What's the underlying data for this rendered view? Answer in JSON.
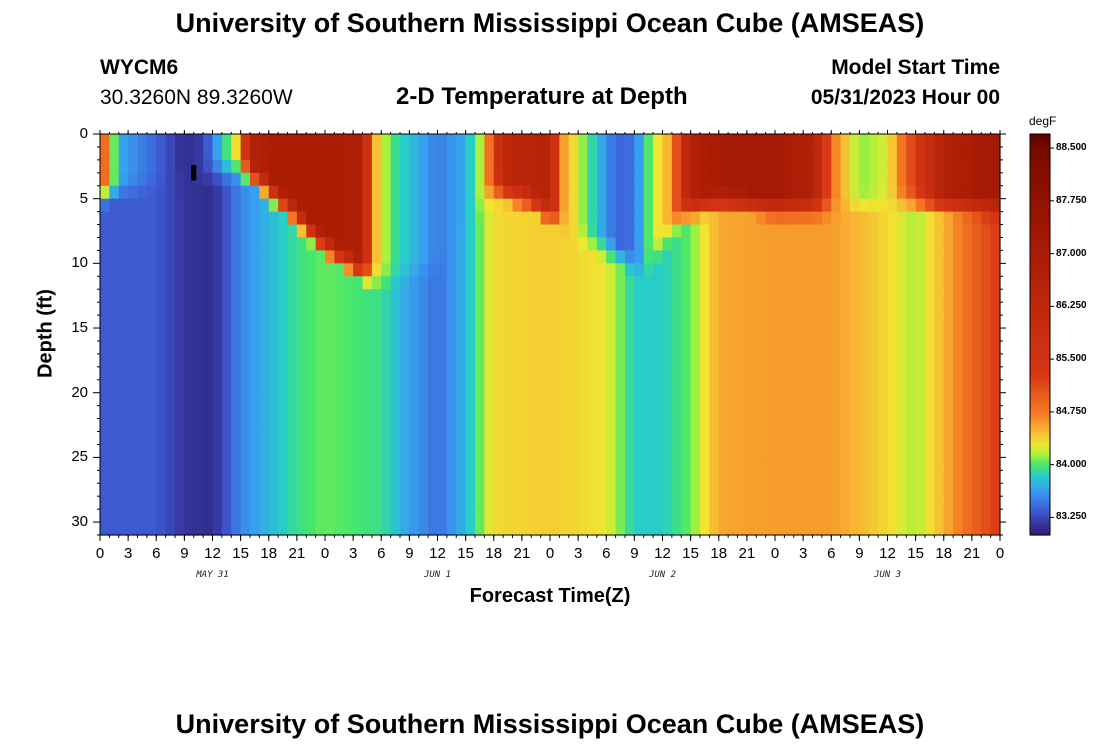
{
  "title": "University of Southern Mississippi Ocean Cube (AMSEAS)",
  "footer_title": "University of Southern Mississippi Ocean Cube (AMSEAS)",
  "station": "WYCM6",
  "coordinates": "30.3260N  89.3260W",
  "subtitle": "2-D Temperature at Depth",
  "model_start_label": "Model Start Time",
  "model_start_value": "05/31/2023 Hour 00",
  "chart_data": {
    "type": "heatmap",
    "title": "2-D Temperature at Depth",
    "xlabel": "Forecast Time(Z)",
    "ylabel": "Depth (ft)",
    "x_hours": [
      0,
      3,
      6,
      9,
      12,
      15,
      18,
      21,
      24,
      27,
      30,
      33,
      36,
      39,
      42,
      45,
      48,
      51,
      54,
      57,
      60,
      63,
      66,
      69,
      72,
      75,
      78,
      81,
      84,
      87,
      90,
      93,
      96
    ],
    "x_range": [
      0,
      96
    ],
    "xtick_labels": [
      "0",
      "3",
      "6",
      "9",
      "12",
      "15",
      "18",
      "21",
      "0",
      "3",
      "6",
      "9",
      "12",
      "15",
      "18",
      "21",
      "0",
      "3",
      "6",
      "9",
      "12",
      "15",
      "18",
      "21",
      "0",
      "3",
      "6",
      "9",
      "12",
      "15",
      "18",
      "21",
      "0"
    ],
    "day_labels": [
      {
        "label": "MAY 31",
        "hour": 12
      },
      {
        "label": "JUN 1",
        "hour": 36
      },
      {
        "label": "JUN 2",
        "hour": 60
      },
      {
        "label": "JUN 3",
        "hour": 84
      }
    ],
    "depth_range": [
      0,
      31
    ],
    "ytick_values": [
      0,
      5,
      10,
      15,
      20,
      25,
      30
    ],
    "ytick_labels": [
      "0",
      "5",
      "10",
      "15",
      "20",
      "25",
      "30"
    ],
    "colorbar": {
      "unit": "degF",
      "min": 83.0,
      "max": 88.7,
      "tick_values": [
        88.5,
        87.75,
        87.0,
        86.25,
        85.5,
        84.75,
        84.0,
        83.25
      ],
      "tick_labels": [
        "88.500",
        "87.750",
        "87.000",
        "86.250",
        "85.500",
        "84.750",
        "84.000",
        "83.250"
      ]
    },
    "deep_profile_degF": [
      {
        "hour": 0,
        "value": 83.35
      },
      {
        "hour": 6,
        "value": 83.35
      },
      {
        "hour": 9,
        "value": 83.15
      },
      {
        "hour": 12,
        "value": 83.1
      },
      {
        "hour": 15,
        "value": 83.55
      },
      {
        "hour": 18,
        "value": 83.75
      },
      {
        "hour": 21,
        "value": 83.95
      },
      {
        "hour": 24,
        "value": 84.05
      },
      {
        "hour": 30,
        "value": 83.95
      },
      {
        "hour": 33,
        "value": 83.65
      },
      {
        "hour": 36,
        "value": 83.45
      },
      {
        "hour": 39,
        "value": 83.75
      },
      {
        "hour": 42,
        "value": 84.35
      },
      {
        "hour": 48,
        "value": 84.4
      },
      {
        "hour": 54,
        "value": 84.3
      },
      {
        "hour": 57,
        "value": 83.85
      },
      {
        "hour": 60,
        "value": 83.85
      },
      {
        "hour": 63,
        "value": 84.05
      },
      {
        "hour": 66,
        "value": 84.55
      },
      {
        "hour": 72,
        "value": 84.6
      },
      {
        "hour": 78,
        "value": 84.6
      },
      {
        "hour": 84,
        "value": 84.35
      },
      {
        "hour": 87,
        "value": 84.15
      },
      {
        "hour": 90,
        "value": 84.5
      },
      {
        "hour": 93,
        "value": 84.9
      },
      {
        "hour": 96,
        "value": 85.3
      }
    ],
    "surface_profile_degF": [
      {
        "hour": 0,
        "value": 85.3
      },
      {
        "hour": 1,
        "value": 84.4
      },
      {
        "hour": 2,
        "value": 83.7
      },
      {
        "hour": 6,
        "value": 83.4
      },
      {
        "hour": 9,
        "value": 83.1
      },
      {
        "hour": 11,
        "value": 83.2
      },
      {
        "hour": 13,
        "value": 83.8
      },
      {
        "hour": 15,
        "value": 84.5
      },
      {
        "hour": 16,
        "value": 86.6
      },
      {
        "hour": 18,
        "value": 86.9
      },
      {
        "hour": 24,
        "value": 87.0
      },
      {
        "hour": 28,
        "value": 86.8
      },
      {
        "hour": 29,
        "value": 84.6
      },
      {
        "hour": 31,
        "value": 84.0
      },
      {
        "hour": 36,
        "value": 83.5
      },
      {
        "hour": 39,
        "value": 83.7
      },
      {
        "hour": 41,
        "value": 84.3
      },
      {
        "hour": 43,
        "value": 86.3
      },
      {
        "hour": 48,
        "value": 86.6
      },
      {
        "hour": 49,
        "value": 84.7
      },
      {
        "hour": 52,
        "value": 84.0
      },
      {
        "hour": 55,
        "value": 83.4
      },
      {
        "hour": 57,
        "value": 83.45
      },
      {
        "hour": 59,
        "value": 84.2
      },
      {
        "hour": 61,
        "value": 84.6
      },
      {
        "hour": 63,
        "value": 86.6
      },
      {
        "hour": 66,
        "value": 87.1
      },
      {
        "hour": 72,
        "value": 87.2
      },
      {
        "hour": 76,
        "value": 86.7
      },
      {
        "hour": 78,
        "value": 84.8
      },
      {
        "hour": 81,
        "value": 84.1
      },
      {
        "hour": 84,
        "value": 84.25
      },
      {
        "hour": 87,
        "value": 85.3
      },
      {
        "hour": 90,
        "value": 86.7
      },
      {
        "hour": 96,
        "value": 87.3
      }
    ],
    "mixed_layer_depth_ft": [
      {
        "hour": 0,
        "value": 4.5
      },
      {
        "hour": 15,
        "value": 2.5
      },
      {
        "hour": 17,
        "value": 3.5
      },
      {
        "hour": 20,
        "value": 5.5
      },
      {
        "hour": 24,
        "value": 8.5
      },
      {
        "hour": 28,
        "value": 10.5
      },
      {
        "hour": 30,
        "value": 11
      },
      {
        "hour": 36,
        "value": 10
      },
      {
        "hour": 42,
        "value": 4
      },
      {
        "hour": 46,
        "value": 5
      },
      {
        "hour": 52,
        "value": 8
      },
      {
        "hour": 56,
        "value": 9.5
      },
      {
        "hour": 58,
        "value": 10.5
      },
      {
        "hour": 62,
        "value": 6
      },
      {
        "hour": 66,
        "value": 5
      },
      {
        "hour": 72,
        "value": 5.5
      },
      {
        "hour": 78,
        "value": 5.5
      },
      {
        "hour": 84,
        "value": 5
      },
      {
        "hour": 96,
        "value": 5.5
      }
    ],
    "cold_core": {
      "center_hour": 10,
      "value_degF": 83.0
    }
  }
}
